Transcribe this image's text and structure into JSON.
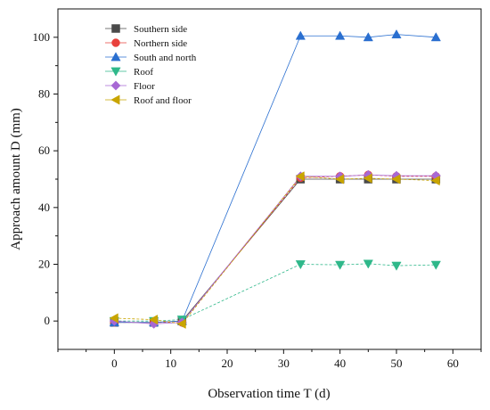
{
  "chart_data": {
    "type": "line",
    "xlabel": "Observation time T (d)",
    "ylabel": "Approach amount D (mm)",
    "xlim": [
      -10,
      65
    ],
    "ylim": [
      -10,
      110
    ],
    "xticks": [
      0,
      10,
      20,
      30,
      40,
      50,
      60
    ],
    "yticks": [
      0,
      20,
      40,
      60,
      80,
      100
    ],
    "grid": false,
    "legend_position": "top-left",
    "x": [
      0,
      7,
      12,
      33,
      40,
      45,
      50,
      57
    ],
    "series": [
      {
        "name": "Southern side",
        "color": "#4a4a4a",
        "marker": "square",
        "values": [
          -0.5,
          -0.5,
          0,
          50,
          50,
          50,
          50,
          50
        ]
      },
      {
        "name": "Northern side",
        "color": "#e8413c",
        "marker": "circle",
        "values": [
          -0.5,
          -0.5,
          -0.5,
          50.5,
          51,
          51.5,
          51,
          51
        ]
      },
      {
        "name": "South and north",
        "color": "#2a6fd0",
        "marker": "triangle-up",
        "values": [
          -0.5,
          -0.5,
          0,
          100.5,
          100.5,
          100,
          101,
          100
        ]
      },
      {
        "name": "Roof",
        "color": "#2fb88a",
        "marker": "triangle-down",
        "values": [
          0,
          0,
          0.5,
          20,
          19.8,
          20.2,
          19.5,
          19.8
        ]
      },
      {
        "name": "Floor",
        "color": "#a768d4",
        "marker": "diamond",
        "values": [
          0,
          -1,
          -0.5,
          51,
          51,
          51.5,
          51.2,
          51.2
        ]
      },
      {
        "name": "Roof and floor",
        "color": "#c9a500",
        "marker": "triangle-left",
        "values": [
          1,
          0.5,
          -1,
          51,
          50,
          50.3,
          50,
          49.5
        ]
      }
    ]
  }
}
